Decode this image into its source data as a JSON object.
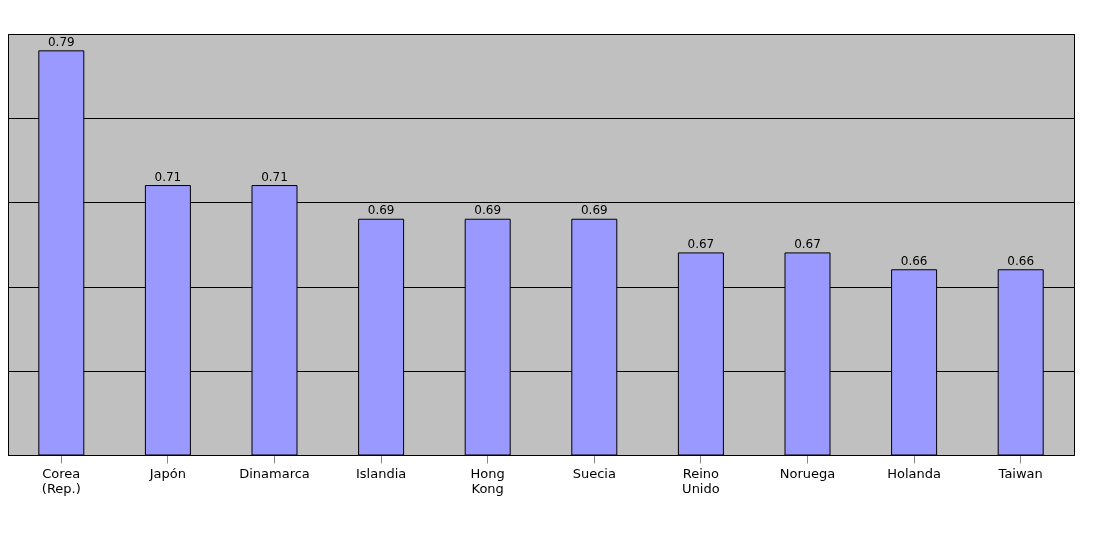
{
  "chart_data": {
    "type": "bar",
    "categories": [
      "Corea (Rep.)",
      "Japón",
      "Dinamarca",
      "Islandia",
      "Hong Kong",
      "Suecia",
      "Reino Unido",
      "Noruega",
      "Holanda",
      "Taiwan"
    ],
    "values": [
      0.79,
      0.71,
      0.71,
      0.69,
      0.69,
      0.69,
      0.67,
      0.67,
      0.66,
      0.66
    ],
    "color": "#9999ff",
    "ylim": [
      0.55,
      0.8
    ],
    "yticks": [
      {
        "value": 0.55,
        "label": null
      },
      {
        "value": 0.6,
        "label": null
      },
      {
        "value": 0.65,
        "label": null
      },
      {
        "value": 0.7,
        "label": null
      },
      {
        "value": 0.75,
        "label": null
      },
      {
        "value": 0.8,
        "label": null
      }
    ],
    "tick_labels": "x",
    "grid": "y",
    "data_labels": true
  }
}
